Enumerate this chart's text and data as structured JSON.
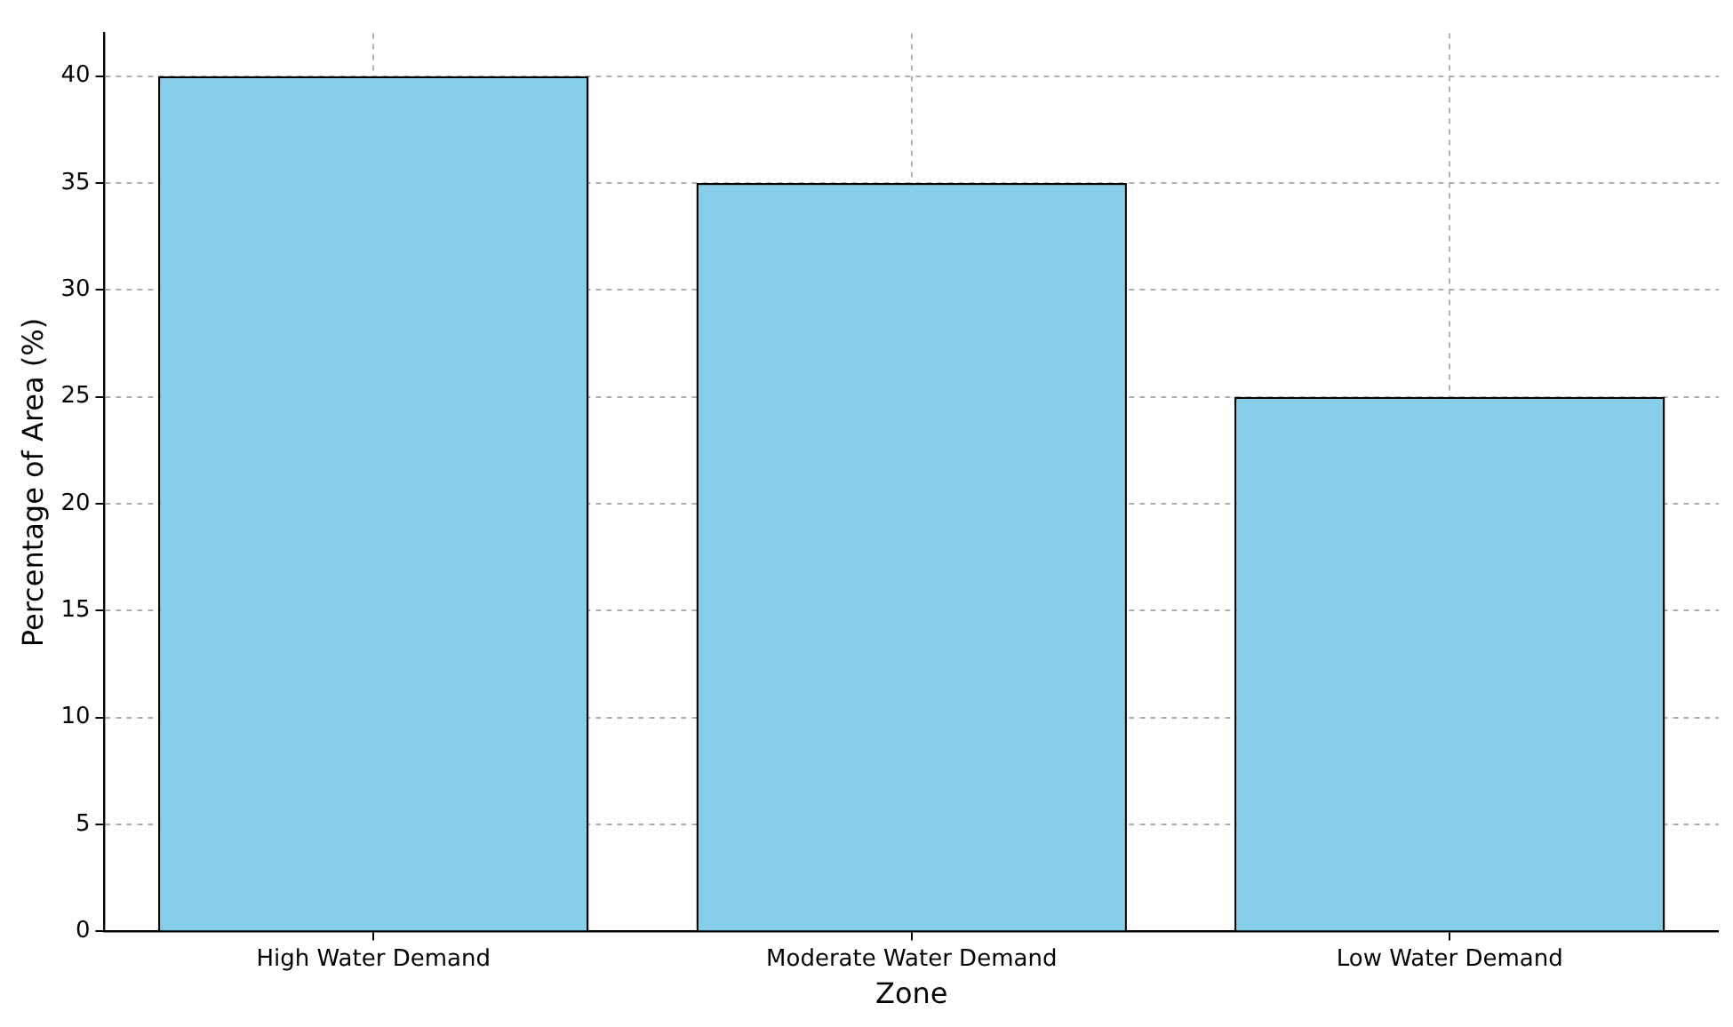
{
  "chart_data": {
    "type": "bar",
    "xlabel": "Zone",
    "ylabel": "Percentage of Area (%)",
    "categories": [
      "High Water Demand",
      "Moderate Water Demand",
      "Low Water Demand"
    ],
    "values": [
      40,
      35,
      25
    ],
    "color": "#87ceeb",
    "ylim": [
      0,
      42
    ],
    "yticks": [
      0,
      5,
      10,
      15,
      20,
      25,
      30,
      35,
      40
    ],
    "grid": true
  }
}
